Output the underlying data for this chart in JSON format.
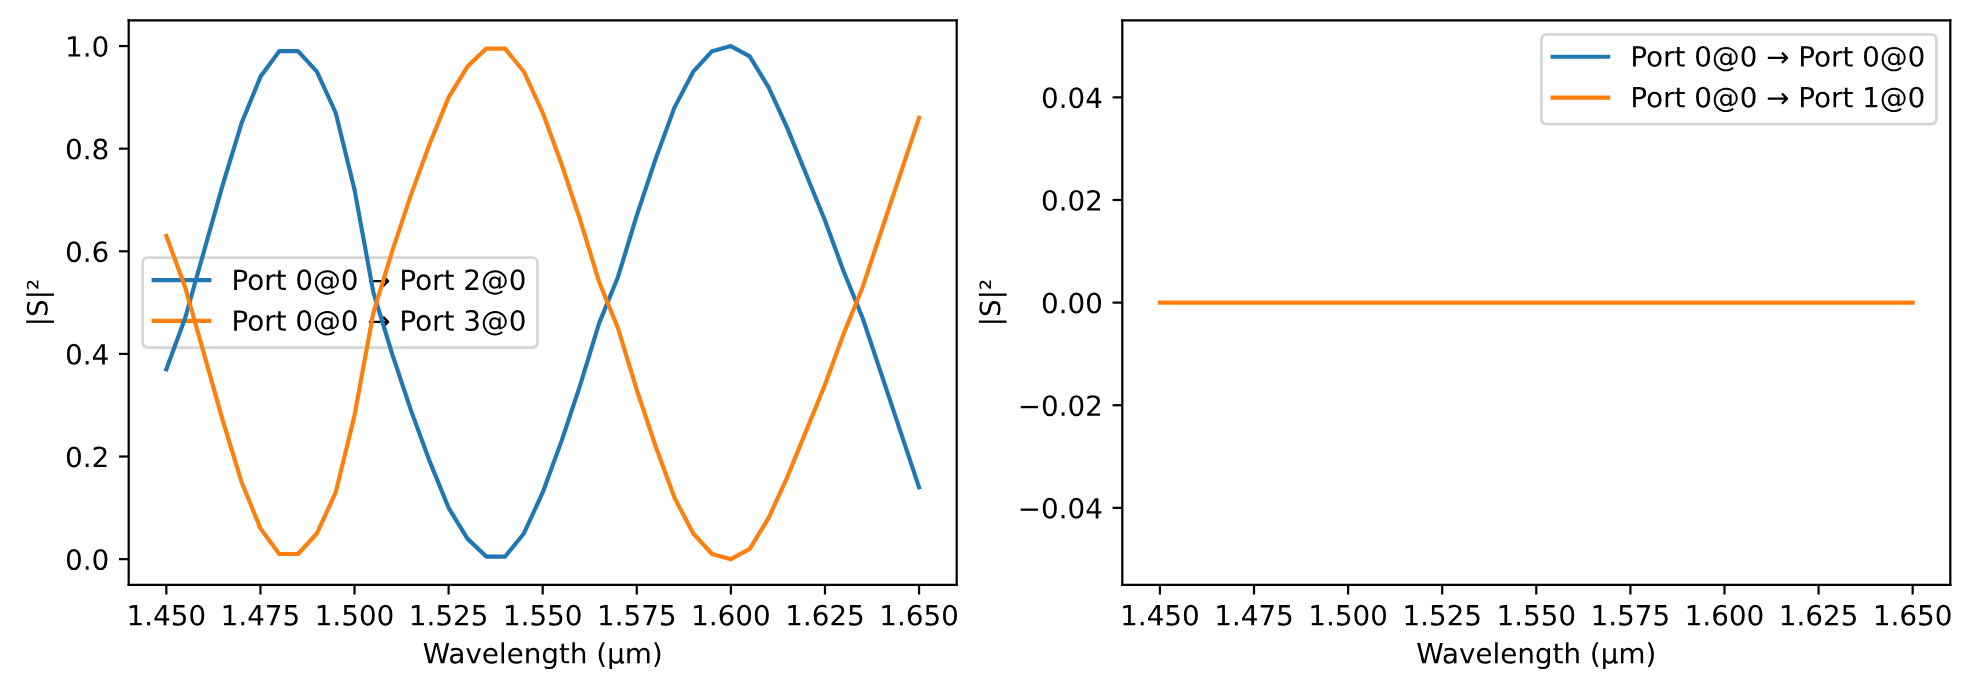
{
  "chart_data": [
    {
      "type": "line",
      "xlabel": "Wavelength (µm)",
      "ylabel": "|S|²",
      "legend": "center left",
      "grid": false,
      "x": [
        1.45,
        1.455,
        1.46,
        1.465,
        1.47,
        1.475,
        1.48,
        1.485,
        1.49,
        1.495,
        1.5,
        1.505,
        1.51,
        1.515,
        1.52,
        1.525,
        1.53,
        1.535,
        1.54,
        1.545,
        1.55,
        1.555,
        1.56,
        1.565,
        1.57,
        1.575,
        1.58,
        1.585,
        1.59,
        1.595,
        1.6,
        1.605,
        1.61,
        1.615,
        1.62,
        1.625,
        1.63,
        1.635,
        1.64,
        1.645,
        1.65
      ],
      "xlim": [
        1.44,
        1.66
      ],
      "xticks": [
        {
          "value": 1.45,
          "label": "1.450"
        },
        {
          "value": 1.475,
          "label": "1.475"
        },
        {
          "value": 1.5,
          "label": "1.500"
        },
        {
          "value": 1.525,
          "label": "1.525"
        },
        {
          "value": 1.55,
          "label": "1.550"
        },
        {
          "value": 1.575,
          "label": "1.575"
        },
        {
          "value": 1.6,
          "label": "1.600"
        },
        {
          "value": 1.625,
          "label": "1.625"
        },
        {
          "value": 1.65,
          "label": "1.650"
        }
      ],
      "ylim": [
        -0.05,
        1.05
      ],
      "yticks": [
        {
          "value": 0,
          "label": "0.0"
        },
        {
          "value": 0.2,
          "label": "0.2"
        },
        {
          "value": 0.4,
          "label": "0.4"
        },
        {
          "value": 0.6,
          "label": "0.6"
        },
        {
          "value": 0.8,
          "label": "0.8"
        },
        {
          "value": 1,
          "label": "1.0"
        }
      ],
      "series": [
        {
          "name": "Port 0@0 → Port 2@0",
          "color": "#1f77b4",
          "values": [
            0.37,
            0.47,
            0.6,
            0.73,
            0.85,
            0.94,
            0.99,
            0.99,
            0.95,
            0.87,
            0.72,
            0.52,
            0.4,
            0.29,
            0.19,
            0.1,
            0.04,
            0.005,
            0.005,
            0.05,
            0.13,
            0.23,
            0.34,
            0.46,
            0.55,
            0.67,
            0.78,
            0.88,
            0.95,
            0.99,
            1.0,
            0.98,
            0.92,
            0.84,
            0.75,
            0.66,
            0.56,
            0.47,
            0.36,
            0.25,
            0.14
          ]
        },
        {
          "name": "Port 0@0 → Port 3@0",
          "color": "#ff7f0e",
          "values": [
            0.63,
            0.53,
            0.4,
            0.27,
            0.15,
            0.06,
            0.01,
            0.01,
            0.05,
            0.13,
            0.28,
            0.48,
            0.6,
            0.71,
            0.81,
            0.9,
            0.96,
            0.995,
            0.995,
            0.95,
            0.87,
            0.77,
            0.66,
            0.54,
            0.45,
            0.33,
            0.22,
            0.12,
            0.05,
            0.01,
            0.0,
            0.02,
            0.08,
            0.16,
            0.25,
            0.34,
            0.44,
            0.53,
            0.64,
            0.75,
            0.86
          ]
        }
      ]
    },
    {
      "type": "line",
      "xlabel": "Wavelength (µm)",
      "ylabel": "|S|²",
      "legend": "top right",
      "grid": false,
      "x": [
        1.45,
        1.65
      ],
      "xlim": [
        1.44,
        1.66
      ],
      "xticks": [
        {
          "value": 1.45,
          "label": "1.450"
        },
        {
          "value": 1.475,
          "label": "1.475"
        },
        {
          "value": 1.5,
          "label": "1.500"
        },
        {
          "value": 1.525,
          "label": "1.525"
        },
        {
          "value": 1.55,
          "label": "1.550"
        },
        {
          "value": 1.575,
          "label": "1.575"
        },
        {
          "value": 1.6,
          "label": "1.600"
        },
        {
          "value": 1.625,
          "label": "1.625"
        },
        {
          "value": 1.65,
          "label": "1.650"
        }
      ],
      "ylim": [
        -0.055,
        0.055
      ],
      "yticks": [
        {
          "value": -0.04,
          "label": "−0.04"
        },
        {
          "value": -0.02,
          "label": "−0.02"
        },
        {
          "value": 0,
          "label": "0.00"
        },
        {
          "value": 0.02,
          "label": "0.02"
        },
        {
          "value": 0.04,
          "label": "0.04"
        }
      ],
      "series": [
        {
          "name": "Port 0@0 → Port 0@0",
          "color": "#1f77b4",
          "values": [
            null,
            null
          ]
        },
        {
          "name": "Port 0@0 → Port 1@0",
          "color": "#ff7f0e",
          "values": [
            0,
            0
          ]
        }
      ]
    }
  ]
}
